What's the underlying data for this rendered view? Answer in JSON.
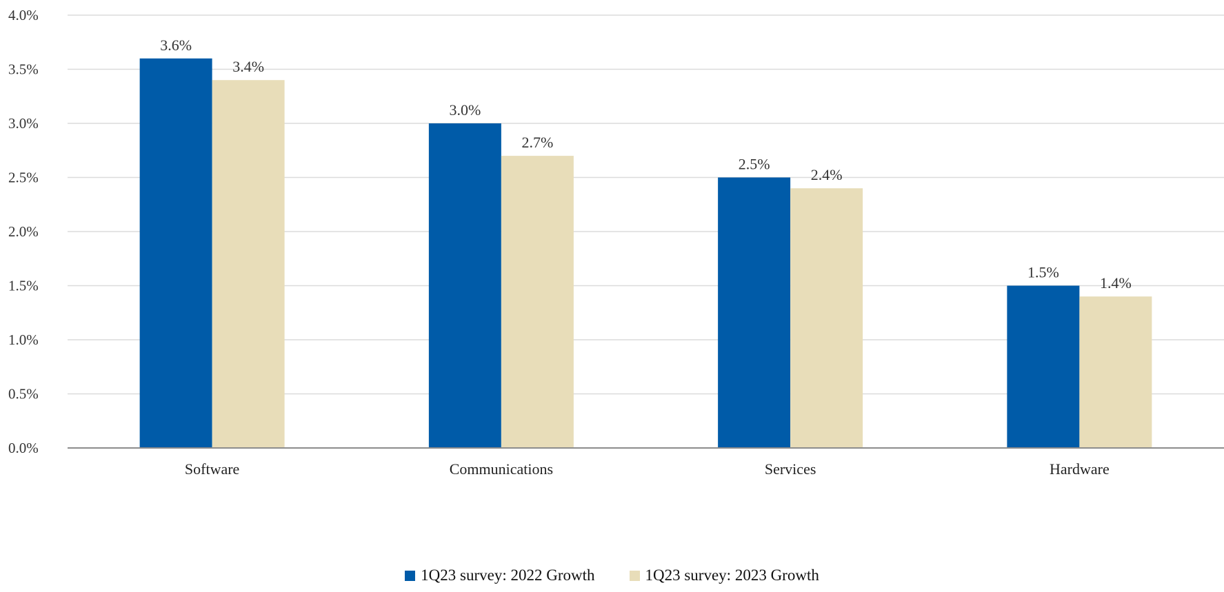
{
  "chart_data": {
    "type": "bar",
    "categories": [
      "Software",
      "Communications",
      "Services",
      "Hardware"
    ],
    "series": [
      {
        "name": "1Q23 survey: 2022 Growth",
        "values": [
          3.6,
          3.0,
          2.5,
          1.5
        ],
        "labels": [
          "3.6%",
          "3.0%",
          "2.5%",
          "1.5%"
        ],
        "color": "#005BA8"
      },
      {
        "name": "1Q23 survey: 2023 Growth",
        "values": [
          3.4,
          2.7,
          2.4,
          1.4
        ],
        "labels": [
          "3.4%",
          "2.7%",
          "2.4%",
          "1.4%"
        ],
        "color": "#E8DDB9"
      }
    ],
    "ylim": [
      0,
      4.0
    ],
    "yticks": [
      0,
      0.5,
      1.0,
      1.5,
      2.0,
      2.5,
      3.0,
      3.5,
      4.0
    ],
    "ytick_labels": [
      "0.0%",
      "0.5%",
      "1.0%",
      "1.5%",
      "2.0%",
      "2.5%",
      "3.0%",
      "3.5%",
      "4.0%"
    ],
    "grid": true,
    "legend_position": "bottom-center",
    "title": "",
    "xlabel": "",
    "ylabel": ""
  }
}
